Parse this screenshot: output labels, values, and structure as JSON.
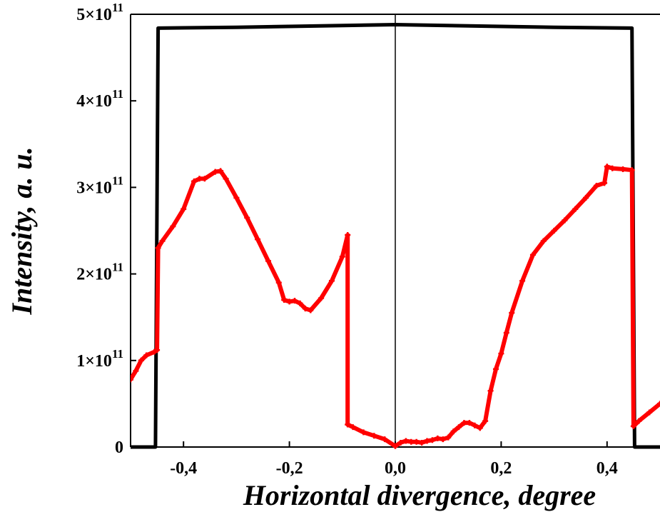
{
  "chart_data": {
    "type": "line",
    "title": "",
    "xlabel": "Horizontal divergence, degree",
    "ylabel": "Intensity, a. u.",
    "xlim": [
      -0.5,
      0.5
    ],
    "ylim": [
      0,
      500000000000.0
    ],
    "x_ticks": [
      {
        "value": -0.4,
        "label": "-0,4"
      },
      {
        "value": -0.2,
        "label": "-0,2"
      },
      {
        "value": 0.0,
        "label": "0,0"
      },
      {
        "value": 0.2,
        "label": "0,2"
      },
      {
        "value": 0.4,
        "label": "0,4"
      }
    ],
    "y_ticks": [
      {
        "value": 0,
        "base": "0",
        "exp": ""
      },
      {
        "value": 100000000000.0,
        "base": "1×10",
        "exp": "11"
      },
      {
        "value": 200000000000.0,
        "base": "2×10",
        "exp": "11"
      },
      {
        "value": 300000000000.0,
        "base": "3×10",
        "exp": "11"
      },
      {
        "value": 400000000000.0,
        "base": "4×10",
        "exp": "11"
      },
      {
        "value": 500000000000.0,
        "base": "5×10",
        "exp": "11"
      }
    ],
    "grid": false,
    "reference_line_x": 0.0,
    "series": [
      {
        "color": "#000000",
        "marker": "none",
        "x": [
          -0.5,
          -0.453,
          -0.448,
          -0.3,
          -0.1,
          0.0,
          0.1,
          0.3,
          0.447,
          0.452,
          0.5
        ],
        "y": [
          0,
          0,
          484000000000.0,
          485000000000.0,
          487000000000.0,
          488000000000.0,
          487000000000.0,
          485000000000.0,
          484000000000.0,
          0,
          0
        ]
      },
      {
        "color": "#ff0000",
        "marker": "plus",
        "x": [
          -0.5,
          -0.49,
          -0.48,
          -0.47,
          -0.455,
          -0.45,
          -0.448,
          -0.44,
          -0.42,
          -0.4,
          -0.38,
          -0.37,
          -0.36,
          -0.34,
          -0.33,
          -0.32,
          -0.3,
          -0.28,
          -0.26,
          -0.24,
          -0.22,
          -0.21,
          -0.2,
          -0.19,
          -0.18,
          -0.17,
          -0.16,
          -0.14,
          -0.12,
          -0.1,
          -0.09,
          -0.09,
          -0.08,
          -0.06,
          -0.04,
          -0.02,
          0.0,
          0.01,
          0.02,
          0.03,
          0.04,
          0.05,
          0.06,
          0.07,
          0.08,
          0.09,
          0.1,
          0.11,
          0.12,
          0.13,
          0.14,
          0.15,
          0.16,
          0.17,
          0.18,
          0.19,
          0.2,
          0.21,
          0.22,
          0.24,
          0.26,
          0.28,
          0.3,
          0.32,
          0.34,
          0.36,
          0.38,
          0.395,
          0.4,
          0.41,
          0.43,
          0.447,
          0.45,
          0.46,
          0.48,
          0.5
        ],
        "y": [
          78000000000.0,
          88000000000.0,
          100000000000.0,
          106000000000.0,
          110000000000.0,
          112000000000.0,
          230000000000.0,
          238000000000.0,
          255000000000.0,
          275000000000.0,
          307000000000.0,
          310000000000.0,
          310000000000.0,
          318000000000.0,
          319000000000.0,
          310000000000.0,
          288000000000.0,
          265000000000.0,
          240000000000.0,
          215000000000.0,
          190000000000.0,
          170000000000.0,
          168000000000.0,
          169000000000.0,
          166000000000.0,
          160000000000.0,
          158000000000.0,
          172000000000.0,
          192000000000.0,
          220000000000.0,
          245000000000.0,
          26000000000.0,
          23000000000.0,
          17000000000.0,
          13000000000.0,
          9000000000.0,
          1000000000.0,
          5000000000.0,
          7000000000.0,
          6000000000.0,
          6000000000.0,
          5000000000.0,
          7000000000.0,
          8000000000.0,
          10000000000.0,
          9000000000.0,
          11000000000.0,
          18000000000.0,
          23000000000.0,
          28000000000.0,
          28000000000.0,
          25000000000.0,
          22000000000.0,
          30000000000.0,
          65000000000.0,
          90000000000.0,
          108000000000.0,
          132000000000.0,
          155000000000.0,
          192000000000.0,
          222000000000.0,
          238000000000.0,
          250000000000.0,
          262000000000.0,
          275000000000.0,
          288000000000.0,
          302000000000.0,
          305000000000.0,
          324000000000.0,
          322000000000.0,
          321000000000.0,
          320000000000.0,
          24000000000.0,
          30000000000.0,
          40000000000.0,
          50000000000.0
        ]
      }
    ]
  }
}
